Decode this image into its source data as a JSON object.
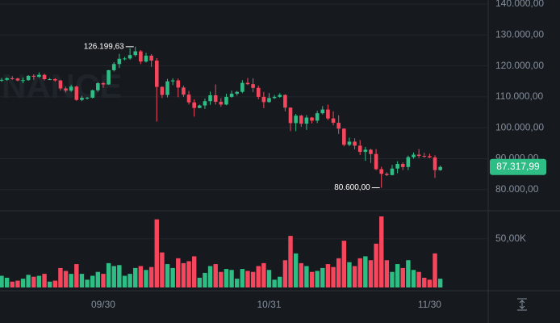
{
  "chart_data": [
    {
      "type": "candlestick",
      "watermark": "BINANCE",
      "categories": [
        null,
        null,
        null,
        null,
        null,
        null,
        null,
        null,
        null,
        null,
        null,
        null,
        null,
        null,
        null,
        null,
        null,
        null,
        null,
        "09/30",
        null,
        null,
        null,
        null,
        null,
        null,
        null,
        null,
        null,
        null,
        null,
        null,
        null,
        null,
        null,
        null,
        null,
        null,
        null,
        null,
        null,
        null,
        null,
        null,
        null,
        null,
        null,
        null,
        null,
        null,
        "10/31",
        null,
        null,
        null,
        null,
        null,
        null,
        null,
        null,
        null,
        null,
        null,
        null,
        null,
        null,
        null,
        null,
        null,
        null,
        null,
        null,
        null,
        null,
        null,
        null,
        null,
        null,
        null,
        null,
        null,
        "11/30",
        null,
        null
      ],
      "open": [
        115200,
        115500,
        116000,
        115900,
        115300,
        115400,
        116800,
        116500,
        117100,
        115700,
        115700,
        115300,
        112700,
        112000,
        113300,
        109000,
        109700,
        109700,
        112100,
        114400,
        114000,
        118600,
        120600,
        122300,
        122400,
        123500,
        124700,
        121400,
        123300,
        121700,
        113200,
        110600,
        115000,
        115300,
        113000,
        110700,
        108200,
        106400,
        107200,
        108600,
        110500,
        108400,
        107500,
        110000,
        111000,
        111600,
        114500,
        114100,
        112900,
        110000,
        108300,
        109600,
        110000,
        110600,
        106500,
        101500,
        103900,
        101300,
        103300,
        102300,
        104700,
        105900,
        103000,
        101600,
        99700,
        94500,
        95500,
        94200,
        92200,
        92900,
        91500,
        86600,
        85100,
        84700,
        86800,
        88300,
        87300,
        90500,
        91300,
        90900,
        90800,
        90400,
        86300
      ],
      "high": [
        116100,
        116300,
        116700,
        116200,
        116200,
        117000,
        117300,
        117900,
        117500,
        116100,
        116000,
        115400,
        113300,
        113900,
        113600,
        110300,
        110000,
        112300,
        114800,
        114800,
        118700,
        121200,
        123900,
        122900,
        125700,
        126199.63,
        125100,
        124200,
        123800,
        122500,
        113400,
        115800,
        116000,
        115900,
        113600,
        111900,
        109200,
        107500,
        109400,
        111700,
        114000,
        109600,
        111000,
        112000,
        111900,
        115400,
        116100,
        116000,
        113600,
        111600,
        111200,
        110600,
        111200,
        110800,
        106600,
        104500,
        104200,
        104100,
        103500,
        105500,
        107000,
        107500,
        105300,
        104000,
        99800,
        96800,
        96600,
        96000,
        93800,
        93200,
        93100,
        87400,
        85600,
        88000,
        89200,
        88800,
        91000,
        92000,
        93100,
        91900,
        91600,
        91100,
        87800
      ],
      "low": [
        114800,
        115200,
        115500,
        115000,
        114400,
        115200,
        115500,
        116100,
        115300,
        115400,
        114900,
        112000,
        111400,
        111600,
        108700,
        108600,
        109100,
        109500,
        111600,
        112900,
        113900,
        118200,
        119300,
        121800,
        122000,
        123000,
        120600,
        121100,
        119700,
        102000,
        109600,
        109800,
        113800,
        109900,
        110000,
        107500,
        103600,
        106300,
        106100,
        107400,
        107500,
        106800,
        107300,
        109700,
        110400,
        111200,
        113800,
        111500,
        109200,
        106300,
        108100,
        109300,
        109700,
        105300,
        98900,
        98900,
        100300,
        99300,
        101400,
        101500,
        104300,
        102500,
        100800,
        98000,
        94000,
        94000,
        93000,
        91200,
        89300,
        88600,
        86300,
        80600,
        84400,
        84600,
        85300,
        86300,
        86300,
        90000,
        90200,
        90300,
        90200,
        83800,
        86100
      ],
      "close": [
        115500,
        116000,
        115900,
        115300,
        115400,
        116800,
        116500,
        117100,
        115700,
        115700,
        115300,
        112700,
        112000,
        113300,
        109000,
        109700,
        109700,
        112100,
        114400,
        114000,
        118600,
        120600,
        122300,
        122400,
        123500,
        124700,
        121400,
        123300,
        121700,
        113200,
        110600,
        115000,
        115300,
        113000,
        110700,
        108200,
        106400,
        107200,
        108600,
        110500,
        108400,
        107500,
        110000,
        111000,
        111600,
        114500,
        114100,
        112900,
        110000,
        108300,
        109600,
        110000,
        110600,
        106500,
        101500,
        103900,
        101300,
        103300,
        102300,
        104700,
        105900,
        103000,
        101600,
        99700,
        94500,
        95500,
        94200,
        92200,
        92900,
        91500,
        86600,
        85100,
        84700,
        86800,
        88300,
        87300,
        90500,
        91300,
        90900,
        90800,
        90400,
        86300,
        87317.99
      ],
      "up_color": "#2ebd85",
      "down_color": "#f6465d",
      "high_label": "126.199,63",
      "low_label": "80.600,00",
      "last_price_label": "87.317,99",
      "ylim": [
        73160,
        141300
      ],
      "yticks": [
        {
          "value": 80000,
          "label": "80.000,00"
        },
        {
          "value": 90000,
          "label": "90.000,00"
        },
        {
          "value": 100000,
          "label": "100.000,00"
        },
        {
          "value": 110000,
          "label": "110.000,00"
        },
        {
          "value": 120000,
          "label": "120.000,00"
        },
        {
          "value": 130000,
          "label": "130.000,00"
        },
        {
          "value": 140000,
          "label": "140.000,00"
        }
      ],
      "grid": true
    },
    {
      "type": "bar",
      "values": [
        12000,
        10000,
        6000,
        7000,
        9000,
        13000,
        11000,
        12000,
        14000,
        6000,
        7000,
        20000,
        17000,
        14000,
        24000,
        14000,
        8000,
        12000,
        16000,
        14000,
        25000,
        22000,
        23000,
        12000,
        14000,
        20000,
        22000,
        18000,
        21000,
        70000,
        36000,
        24000,
        20000,
        30000,
        25000,
        27000,
        32000,
        10000,
        15000,
        22000,
        24000,
        16000,
        19000,
        18000,
        9000,
        19000,
        17000,
        16000,
        22000,
        25000,
        18000,
        8000,
        11000,
        28000,
        53000,
        35000,
        25000,
        22000,
        16000,
        17000,
        20000,
        24000,
        21000,
        30000,
        48000,
        26000,
        22000,
        30000,
        32000,
        28000,
        45000,
        73000,
        28000,
        16000,
        24000,
        20000,
        28000,
        18000,
        16000,
        10000,
        8000,
        35000,
        9000
      ],
      "up_color": "#2ebd85",
      "down_color": "#f6465d",
      "ylim": [
        0,
        78000
      ],
      "yticks": [
        {
          "value": 50000,
          "label": "50,00K"
        }
      ]
    }
  ]
}
